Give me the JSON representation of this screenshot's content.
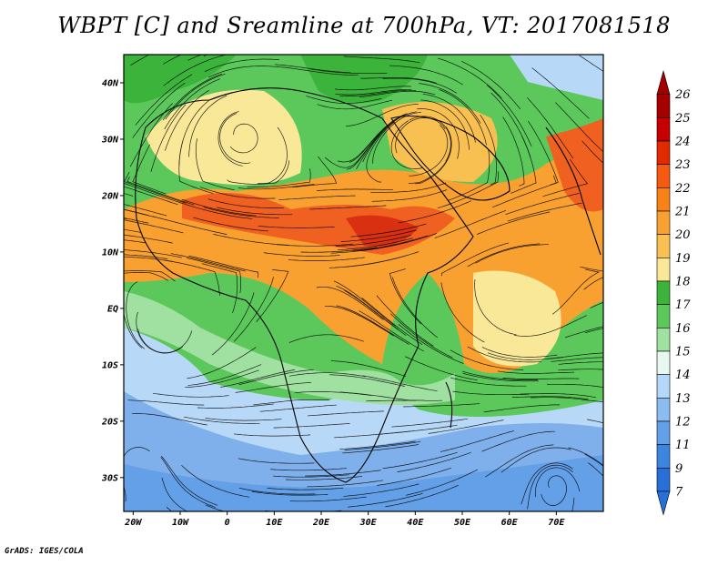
{
  "title": "WBPT [C] and Sreamline at 700hPa, VT: 2017081518",
  "credit": "GrADS: IGES/COLA",
  "map": {
    "lat_labels": [
      "40N",
      "30N",
      "20N",
      "10N",
      "EQ",
      "10S",
      "20S",
      "30S"
    ],
    "lat_values": [
      40,
      30,
      20,
      10,
      0,
      -10,
      -20,
      -30
    ],
    "lon_labels": [
      "20W",
      "10W",
      "0",
      "10E",
      "20E",
      "30E",
      "40E",
      "50E",
      "60E",
      "70E"
    ],
    "lon_values": [
      -20,
      -10,
      0,
      10,
      20,
      30,
      40,
      50,
      60,
      70
    ],
    "lon_range": [
      -22,
      80
    ],
    "lat_range": [
      -36,
      45
    ]
  },
  "colorbar": {
    "labels": [
      "26",
      "25",
      "24",
      "23",
      "22",
      "21",
      "20",
      "19",
      "18",
      "17",
      "16",
      "15",
      "14",
      "13",
      "12",
      "11",
      "9",
      "7"
    ],
    "colors": [
      "#a50000",
      "#c60000",
      "#e22a00",
      "#f45a10",
      "#f88218",
      "#f8a030",
      "#f8c050",
      "#f8e898",
      "#3cb43c",
      "#5cc85c",
      "#a0e0a0",
      "#e6f8f0",
      "#b4d8f8",
      "#8cbcf0",
      "#64a0e8",
      "#3c86e0",
      "#2870d8"
    ],
    "over_color": "#a50000",
    "under_color": "#2870d8"
  },
  "colors": {
    "blue": "#7fb0ec",
    "lightblue": "#b8d8f8",
    "green": "#5cc85c",
    "lightgreen": "#a0e0a0",
    "yellow": "#f8e898",
    "orange": "#f8a030",
    "red": "#f06020"
  }
}
